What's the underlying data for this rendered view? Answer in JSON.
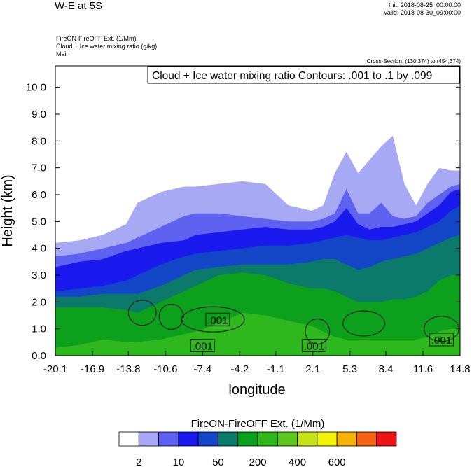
{
  "header": {
    "title": "W-E at 5S",
    "init": "Init: 2018-08-25_00:00:00",
    "valid": "Valid: 2018-08-30_09:00:00",
    "subtitle_1": "FireON-FireOFF Ext.   (1/Mm)",
    "subtitle_2": "Cloud + Ice water mixing ratio   (g/kg)",
    "subtitle_3": "Main",
    "cross_section": "Cross-Section: (130,374) to (454,374)"
  },
  "contour_label": "Cloud + Ice water mixing ratio Contours: .001 to .1 by .099",
  "contour_value_labels": [
    ".001",
    ".001",
    ".001",
    ".001"
  ],
  "colorbar": {
    "title": "FireON-FireOFF Ext.  (1/Mm)",
    "colors": [
      "#ffffff",
      "#a7a9f4",
      "#5f62f0",
      "#1a1aef",
      "#1446c8",
      "#0b7a6a",
      "#0ca01c",
      "#2eb81d",
      "#5cc81f",
      "#c6e21b",
      "#f2f20a",
      "#f7b20a",
      "#f56414",
      "#ec1414"
    ],
    "tick_labels": [
      "2",
      "10",
      "50",
      "200",
      "400",
      "600"
    ]
  },
  "chart_data": {
    "type": "heatmap",
    "xlabel": "longitude",
    "ylabel": "Height (km)",
    "x_tick_labels": [
      "-20.1",
      "-16.9",
      "-13.8",
      "-10.6",
      "-7.4",
      "-4.2",
      "-1.1",
      "2.1",
      "5.3",
      "8.4",
      "11.6",
      "14.8"
    ],
    "y_tick_labels": [
      "0.0",
      "1.0",
      "2.0",
      "3.0",
      "4.0",
      "5.0",
      "6.0",
      "7.0",
      "8.0",
      "9.0",
      "10.0"
    ],
    "xlim": [
      -20.1,
      14.8
    ],
    "ylim": [
      0,
      10.8
    ],
    "grid": false,
    "fill_levels": {
      "upper_boundary_km": {
        "x": [
          -20.1,
          -18,
          -16,
          -14,
          -13,
          -11,
          -9,
          -8,
          -6,
          -4,
          -2,
          0,
          2,
          3,
          4,
          5,
          6,
          7,
          8,
          9,
          10,
          11,
          12,
          13,
          14,
          14.8
        ],
        "level_1": [
          4.2,
          4.3,
          4.5,
          4.9,
          5.7,
          6.1,
          6.3,
          6.3,
          6.4,
          6.5,
          6.4,
          5.6,
          5.4,
          5.6,
          6.8,
          7.6,
          6.8,
          7.3,
          7.8,
          8.2,
          6.4,
          5.6,
          6.4,
          7.0,
          6.9,
          6.9
        ],
        "level_2": [
          3.7,
          3.8,
          4.0,
          4.2,
          4.4,
          4.8,
          5.2,
          5.3,
          5.3,
          5.2,
          5.1,
          5.0,
          5.0,
          5.1,
          5.3,
          6.2,
          5.3,
          5.3,
          5.7,
          5.2,
          5.1,
          5.2,
          5.7,
          6.0,
          6.3,
          6.4
        ],
        "level_3": [
          3.3,
          3.5,
          3.6,
          3.9,
          4.0,
          4.2,
          4.3,
          4.5,
          4.6,
          4.7,
          4.8,
          4.7,
          4.7,
          4.8,
          5.0,
          5.5,
          4.9,
          4.7,
          4.8,
          4.8,
          4.9,
          5.0,
          5.3,
          5.6,
          6.1,
          6.2
        ],
        "level_4": [
          2.4,
          2.5,
          2.6,
          2.8,
          3.0,
          3.4,
          3.7,
          3.8,
          3.9,
          4.0,
          4.1,
          4.1,
          4.2,
          4.3,
          4.4,
          4.5,
          4.4,
          4.3,
          4.3,
          4.4,
          4.5,
          4.6,
          4.8,
          5.0,
          5.4,
          5.6
        ],
        "level_5": [
          2.2,
          2.2,
          2.3,
          2.3,
          2.3,
          2.6,
          3.0,
          3.2,
          3.3,
          3.4,
          3.4,
          3.4,
          3.5,
          3.6,
          3.6,
          3.4,
          3.2,
          3.3,
          3.5,
          3.6,
          3.7,
          3.8,
          4.0,
          4.2,
          4.4,
          4.5
        ],
        "level_6": [
          1.8,
          1.8,
          1.8,
          1.7,
          1.6,
          2.0,
          2.4,
          2.6,
          3.0,
          3.1,
          3.0,
          2.7,
          2.5,
          2.5,
          2.4,
          2.2,
          2.0,
          2.0,
          2.0,
          2.1,
          2.1,
          2.2,
          2.4,
          2.8,
          3.0,
          3.0
        ],
        "level_7": [
          0.3,
          0.4,
          0.6,
          0.5,
          0.5,
          0.6,
          0.8,
          0.9,
          1.2,
          1.6,
          1.5,
          1.3,
          1.1,
          0.9,
          0.7,
          0.6,
          0.6,
          0.6,
          0.6,
          0.6,
          0.6,
          0.6,
          0.7,
          0.9,
          1.0,
          1.0
        ]
      }
    }
  }
}
